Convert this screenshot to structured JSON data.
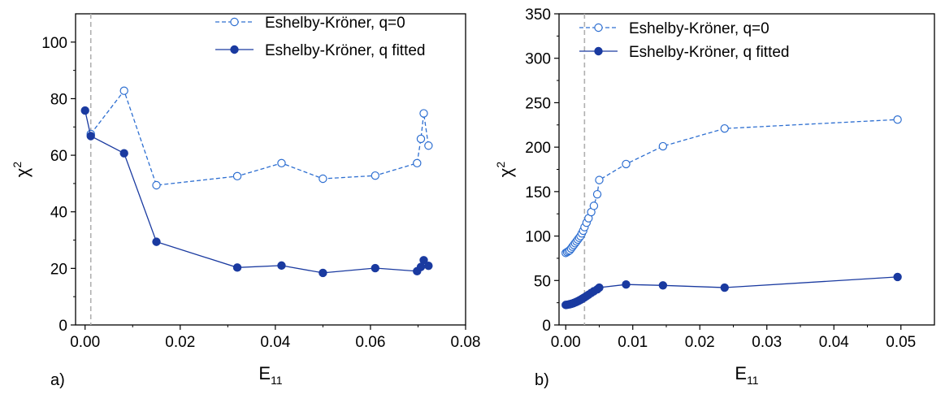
{
  "chart_data": [
    {
      "type": "line",
      "panel_label": "a)",
      "xlabel": "E",
      "xlabel_sub": "11",
      "ylabel": "χ",
      "ylabel_sup": "2",
      "xlim": [
        -0.002,
        0.08
      ],
      "ylim": [
        0,
        110
      ],
      "xticks": [
        0.0,
        0.02,
        0.04,
        0.06,
        0.08
      ],
      "xtick_labels": [
        "0.00",
        "0.02",
        "0.04",
        "0.06",
        "0.08"
      ],
      "yticks": [
        0,
        20,
        40,
        60,
        80,
        100
      ],
      "ytick_labels": [
        "0",
        "20",
        "40",
        "60",
        "80",
        "100"
      ],
      "vline_x": 0.0012,
      "grid": false,
      "legend_position": "top-right",
      "series": [
        {
          "name": "Eshelby-Kröner, q=0",
          "style": "dashed",
          "marker": "open-circle",
          "color": "#2e6fd1",
          "x": [
            0.0012,
            0.0082,
            0.015,
            0.032,
            0.0413,
            0.05,
            0.061,
            0.0698,
            0.0706,
            0.0712,
            0.0722
          ],
          "y": [
            67.5,
            82.8,
            49.4,
            52.6,
            57.2,
            51.7,
            52.8,
            57.2,
            65.8,
            74.8,
            63.4
          ]
        },
        {
          "name": "Eshelby-Kröner, q fitted",
          "style": "solid",
          "marker": "filled-circle",
          "color": "#1a3aa0",
          "x": [
            0.0,
            0.0012,
            0.0082,
            0.015,
            0.032,
            0.0413,
            0.05,
            0.061,
            0.0698,
            0.0706,
            0.0712,
            0.0722
          ],
          "y": [
            75.8,
            66.8,
            60.7,
            29.4,
            20.3,
            21.0,
            18.4,
            20.1,
            19.0,
            20.5,
            22.9,
            20.9
          ]
        }
      ]
    },
    {
      "type": "line",
      "panel_label": "b)",
      "xlabel": "E",
      "xlabel_sub": "11",
      "ylabel": "χ",
      "ylabel_sup": "2",
      "xlim": [
        -0.001,
        0.055
      ],
      "ylim": [
        0,
        350
      ],
      "xticks": [
        0.0,
        0.01,
        0.02,
        0.03,
        0.04,
        0.05
      ],
      "xtick_labels": [
        "0.00",
        "0.01",
        "0.02",
        "0.03",
        "0.04",
        "0.05"
      ],
      "yticks": [
        0,
        50,
        100,
        150,
        200,
        250,
        300,
        350
      ],
      "ytick_labels": [
        "0",
        "50",
        "100",
        "150",
        "200",
        "250",
        "300",
        "350"
      ],
      "vline_x": 0.0028,
      "grid": false,
      "legend_position": "top-left",
      "series": [
        {
          "name": "Eshelby-Kröner, q=0",
          "style": "dashed",
          "marker": "open-circle",
          "color": "#2e6fd1",
          "x": [
            0.0,
            0.0002,
            0.0004,
            0.0006,
            0.0008,
            0.001,
            0.0012,
            0.0014,
            0.0016,
            0.0018,
            0.002,
            0.0022,
            0.0024,
            0.0026,
            0.0028,
            0.0031,
            0.0034,
            0.0038,
            0.0042,
            0.0047,
            0.005,
            0.009,
            0.0145,
            0.0237,
            0.0495
          ],
          "y": [
            81,
            82,
            83,
            84,
            86,
            88,
            90,
            92,
            94,
            96,
            98,
            100,
            103,
            106,
            110,
            115,
            120,
            127,
            134,
            147,
            163,
            181,
            201,
            221,
            231
          ]
        },
        {
          "name": "Eshelby-Kröner, q fitted",
          "style": "solid",
          "marker": "filled-circle",
          "color": "#1a3aa0",
          "x": [
            0.0,
            0.0002,
            0.0004,
            0.0006,
            0.0008,
            0.001,
            0.0012,
            0.0014,
            0.0016,
            0.0018,
            0.002,
            0.0022,
            0.0024,
            0.0026,
            0.0028,
            0.0031,
            0.0034,
            0.0038,
            0.0042,
            0.0047,
            0.005,
            0.009,
            0.0145,
            0.0237,
            0.0495
          ],
          "y": [
            22.5,
            22.7,
            23,
            23.3,
            23.7,
            24.2,
            24.7,
            25.3,
            26,
            26.7,
            27.5,
            28.3,
            29.2,
            30.1,
            31,
            32.5,
            34,
            36,
            38,
            40,
            42,
            45.5,
            44.5,
            42,
            54
          ]
        }
      ]
    }
  ]
}
